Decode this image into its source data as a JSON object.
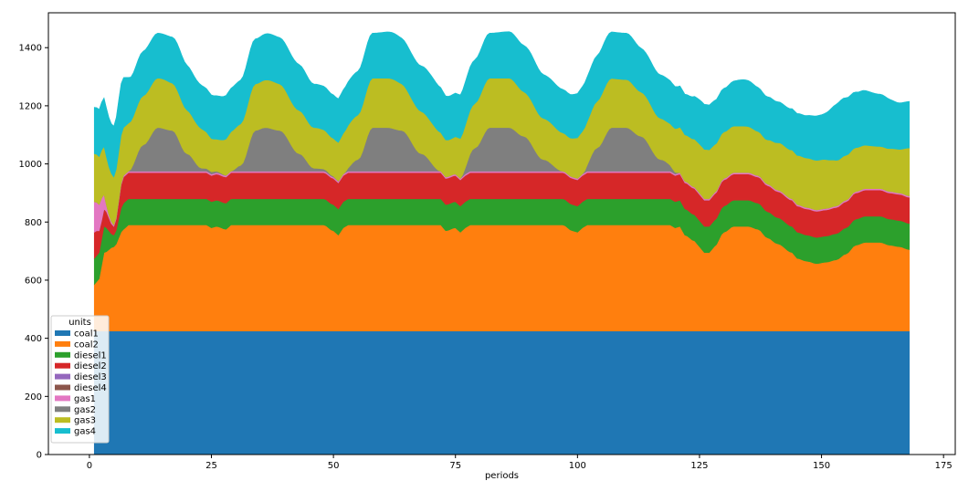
{
  "chart_data": {
    "type": "area",
    "stacked": true,
    "xlabel": "periods",
    "ylabel": "",
    "xlim": [
      -8.4,
      177.4
    ],
    "ylim": [
      0,
      1520
    ],
    "xticks": [
      0,
      25,
      50,
      75,
      100,
      125,
      150,
      175
    ],
    "yticks": [
      0,
      200,
      400,
      600,
      800,
      1000,
      1200,
      1400
    ],
    "legend": {
      "title": "units",
      "placement": "lower-left"
    },
    "x_range": [
      1,
      168
    ],
    "grid": false,
    "series": [
      {
        "name": "coal1",
        "color": "#1f77b4",
        "points": [
          [
            1,
            425
          ],
          [
            168,
            425
          ]
        ]
      },
      {
        "name": "coal2",
        "color": "#ff7f0e",
        "points": [
          [
            1,
            160
          ],
          [
            2,
            180
          ],
          [
            3,
            270
          ],
          [
            5,
            290
          ],
          [
            7,
            350
          ],
          [
            8,
            365
          ],
          [
            24,
            365
          ],
          [
            25,
            355
          ],
          [
            26,
            360
          ],
          [
            28,
            350
          ],
          [
            29,
            365
          ],
          [
            48,
            365
          ],
          [
            50,
            345
          ],
          [
            51,
            330
          ],
          [
            52,
            355
          ],
          [
            53,
            365
          ],
          [
            72,
            365
          ],
          [
            73,
            345
          ],
          [
            75,
            355
          ],
          [
            76,
            340
          ],
          [
            77,
            355
          ],
          [
            78,
            365
          ],
          [
            97,
            365
          ],
          [
            99,
            345
          ],
          [
            100,
            340
          ],
          [
            101,
            355
          ],
          [
            102,
            365
          ],
          [
            119,
            365
          ],
          [
            120,
            355
          ],
          [
            121,
            360
          ],
          [
            122,
            330
          ],
          [
            124,
            310
          ],
          [
            125,
            290
          ],
          [
            126,
            270
          ],
          [
            127,
            270
          ],
          [
            128,
            290
          ],
          [
            130,
            340
          ],
          [
            132,
            360
          ],
          [
            135,
            360
          ],
          [
            137,
            350
          ],
          [
            139,
            320
          ],
          [
            141,
            300
          ],
          [
            144,
            270
          ],
          [
            145,
            250
          ],
          [
            147,
            240
          ],
          [
            149,
            232
          ],
          [
            151,
            237
          ],
          [
            153,
            245
          ],
          [
            155,
            265
          ],
          [
            157,
            295
          ],
          [
            159,
            305
          ],
          [
            162,
            305
          ],
          [
            164,
            295
          ],
          [
            166,
            290
          ],
          [
            168,
            280
          ]
        ]
      },
      {
        "name": "diesel1",
        "color": "#2ca02c",
        "points": [
          [
            1,
            90
          ],
          [
            3,
            90
          ],
          [
            5,
            40
          ],
          [
            7,
            90
          ],
          [
            168,
            90
          ]
        ]
      },
      {
        "name": "diesel2",
        "color": "#d62728",
        "points": [
          [
            1,
            90
          ],
          [
            3,
            60
          ],
          [
            5,
            30
          ],
          [
            7,
            90
          ],
          [
            168,
            90
          ]
        ]
      },
      {
        "name": "diesel3",
        "color": "#9467bd",
        "points": [
          [
            1,
            0
          ],
          [
            168,
            0
          ]
        ]
      },
      {
        "name": "diesel4",
        "color": "#8c564b",
        "points": [
          [
            1,
            0
          ],
          [
            168,
            0
          ]
        ]
      },
      {
        "name": "gas1",
        "color": "#e377c2",
        "points": [
          [
            1,
            105
          ],
          [
            2,
            90
          ],
          [
            4,
            10
          ],
          [
            5,
            5
          ],
          [
            8,
            5
          ],
          [
            168,
            5
          ]
        ]
      },
      {
        "name": "gas2",
        "color": "#7f7f7f",
        "points": [
          [
            1,
            0
          ],
          [
            8,
            0
          ],
          [
            11,
            90
          ],
          [
            14,
            150
          ],
          [
            17,
            140
          ],
          [
            20,
            60
          ],
          [
            23,
            10
          ],
          [
            29,
            0
          ],
          [
            31,
            20
          ],
          [
            34,
            140
          ],
          [
            36,
            150
          ],
          [
            39,
            140
          ],
          [
            43,
            60
          ],
          [
            46,
            10
          ],
          [
            52,
            0
          ],
          [
            55,
            40
          ],
          [
            58,
            150
          ],
          [
            61,
            150
          ],
          [
            64,
            140
          ],
          [
            68,
            60
          ],
          [
            72,
            0
          ],
          [
            76,
            0
          ],
          [
            79,
            80
          ],
          [
            82,
            150
          ],
          [
            86,
            150
          ],
          [
            89,
            120
          ],
          [
            93,
            40
          ],
          [
            97,
            0
          ],
          [
            101,
            0
          ],
          [
            104,
            80
          ],
          [
            107,
            150
          ],
          [
            110,
            150
          ],
          [
            113,
            120
          ],
          [
            117,
            40
          ],
          [
            121,
            0
          ],
          [
            168,
            0
          ]
        ]
      },
      {
        "name": "gas3",
        "color": "#bcbd22",
        "points": [
          [
            1,
            165
          ],
          [
            6,
            165
          ],
          [
            9,
            165
          ],
          [
            12,
            170
          ],
          [
            15,
            170
          ],
          [
            18,
            160
          ],
          [
            22,
            140
          ],
          [
            26,
            110
          ],
          [
            30,
            140
          ],
          [
            34,
            160
          ],
          [
            37,
            165
          ],
          [
            42,
            150
          ],
          [
            46,
            140
          ],
          [
            50,
            130
          ],
          [
            54,
            150
          ],
          [
            58,
            170
          ],
          [
            62,
            170
          ],
          [
            66,
            150
          ],
          [
            70,
            140
          ],
          [
            74,
            125
          ],
          [
            78,
            150
          ],
          [
            82,
            170
          ],
          [
            86,
            170
          ],
          [
            90,
            150
          ],
          [
            94,
            140
          ],
          [
            98,
            130
          ],
          [
            102,
            150
          ],
          [
            106,
            170
          ],
          [
            110,
            165
          ],
          [
            114,
            150
          ],
          [
            118,
            140
          ],
          [
            122,
            160
          ],
          [
            126,
            170
          ],
          [
            130,
            160
          ],
          [
            134,
            160
          ],
          [
            138,
            150
          ],
          [
            142,
            165
          ],
          [
            146,
            170
          ],
          [
            150,
            170
          ],
          [
            154,
            155
          ],
          [
            158,
            150
          ],
          [
            162,
            145
          ],
          [
            166,
            150
          ],
          [
            168,
            165
          ]
        ]
      },
      {
        "name": "gas4",
        "color": "#17becf",
        "points": [
          [
            1,
            160
          ],
          [
            4,
            170
          ],
          [
            6,
            180
          ],
          [
            9,
            150
          ],
          [
            12,
            155
          ],
          [
            15,
            155
          ],
          [
            18,
            160
          ],
          [
            22,
            150
          ],
          [
            26,
            150
          ],
          [
            30,
            150
          ],
          [
            34,
            155
          ],
          [
            37,
            160
          ],
          [
            42,
            160
          ],
          [
            46,
            150
          ],
          [
            50,
            150
          ],
          [
            54,
            150
          ],
          [
            58,
            155
          ],
          [
            62,
            160
          ],
          [
            66,
            155
          ],
          [
            70,
            160
          ],
          [
            74,
            150
          ],
          [
            78,
            150
          ],
          [
            82,
            155
          ],
          [
            86,
            160
          ],
          [
            90,
            160
          ],
          [
            94,
            150
          ],
          [
            98,
            150
          ],
          [
            102,
            155
          ],
          [
            106,
            160
          ],
          [
            110,
            160
          ],
          [
            114,
            150
          ],
          [
            118,
            150
          ],
          [
            122,
            140
          ],
          [
            126,
            155
          ],
          [
            130,
            150
          ],
          [
            134,
            160
          ],
          [
            138,
            150
          ],
          [
            142,
            140
          ],
          [
            146,
            145
          ],
          [
            150,
            155
          ],
          [
            154,
            200
          ],
          [
            158,
            190
          ],
          [
            162,
            180
          ],
          [
            166,
            160
          ],
          [
            168,
            160
          ]
        ]
      }
    ]
  }
}
